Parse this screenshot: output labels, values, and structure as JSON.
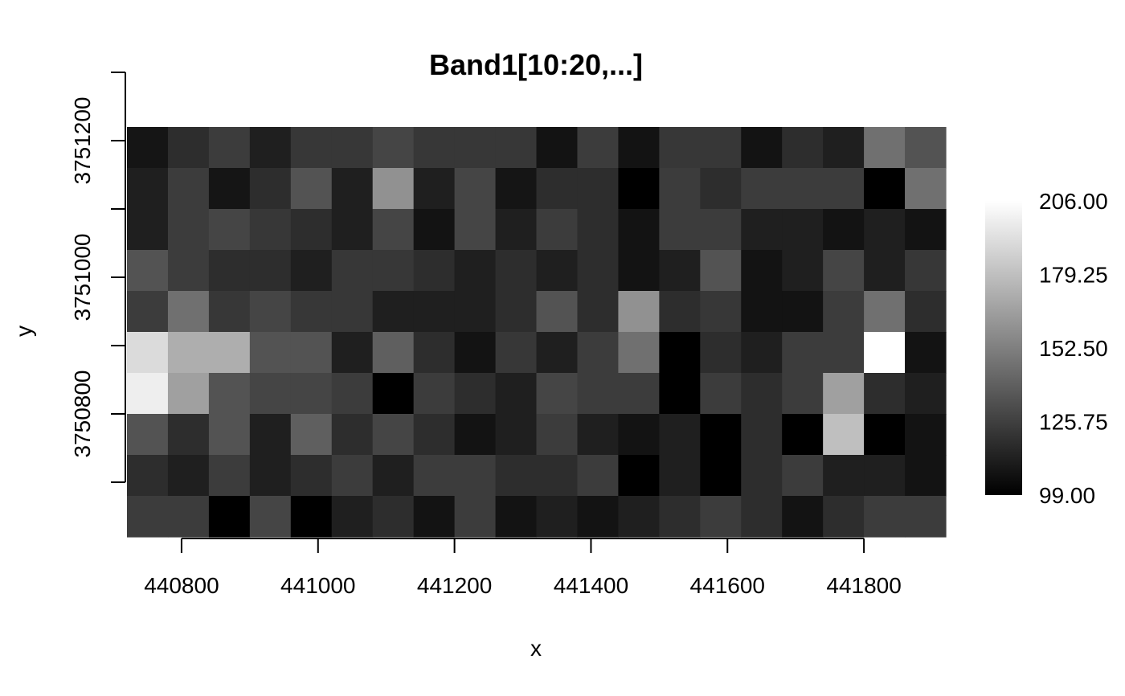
{
  "chart_data": {
    "type": "heatmap",
    "title": "Band1[10:20,...]",
    "xlabel": "x",
    "ylabel": "y",
    "x_ticks": [
      "440800",
      "441000",
      "441200",
      "441400",
      "441600",
      "441800"
    ],
    "x_tick_values": [
      440800,
      441000,
      441200,
      441400,
      441600,
      441800
    ],
    "y_ticks": [
      "3750800",
      "3751000",
      "3751200"
    ],
    "y_tick_values": [
      3750800,
      3751000,
      3751200
    ],
    "y_minor_tick_values": [
      3750700,
      3750900,
      3751100,
      3751300
    ],
    "xlim": [
      440720,
      441920
    ],
    "ylim": [
      3750620,
      3751220
    ],
    "cell_size": 60,
    "color_scale": {
      "low": "#000000",
      "high": "#ffffff",
      "min": 99,
      "max": 206
    },
    "legend": {
      "position": "right",
      "labels": [
        "206.00",
        "179.25",
        "152.50",
        "125.75",
        "99.00"
      ],
      "values": [
        206,
        179.25,
        152.5,
        125.75,
        99
      ]
    },
    "grid": false,
    "values": [
      [
        108,
        118,
        124,
        112,
        122,
        122,
        128,
        122,
        122,
        122,
        107,
        124,
        107,
        122,
        122,
        107,
        118,
        112,
        146,
        134
      ],
      [
        112,
        124,
        108,
        118,
        134,
        112,
        160,
        112,
        128,
        108,
        118,
        118,
        99,
        124,
        118,
        124,
        124,
        124,
        99,
        146
      ],
      [
        112,
        124,
        128,
        122,
        118,
        112,
        128,
        107,
        128,
        112,
        124,
        118,
        107,
        124,
        124,
        112,
        112,
        107,
        112,
        107
      ],
      [
        134,
        124,
        118,
        118,
        112,
        122,
        122,
        118,
        112,
        118,
        112,
        118,
        107,
        112,
        134,
        107,
        112,
        128,
        112,
        122
      ],
      [
        124,
        146,
        122,
        128,
        122,
        122,
        112,
        112,
        112,
        118,
        134,
        118,
        160,
        118,
        122,
        107,
        107,
        124,
        146,
        118
      ],
      [
        191,
        172,
        172,
        134,
        134,
        112,
        139,
        118,
        107,
        122,
        112,
        124,
        146,
        99,
        118,
        112,
        124,
        124,
        206,
        107
      ],
      [
        199,
        166,
        134,
        128,
        128,
        124,
        99,
        124,
        118,
        112,
        128,
        124,
        124,
        99,
        124,
        118,
        124,
        166,
        118,
        112
      ],
      [
        134,
        118,
        134,
        112,
        139,
        118,
        128,
        118,
        107,
        112,
        124,
        112,
        107,
        112,
        99,
        118,
        99,
        179,
        99,
        107
      ],
      [
        118,
        112,
        124,
        112,
        118,
        124,
        112,
        124,
        124,
        118,
        118,
        124,
        99,
        112,
        99,
        118,
        124,
        112,
        112,
        107
      ],
      [
        124,
        124,
        99,
        128,
        99,
        112,
        118,
        107,
        124,
        107,
        112,
        107,
        112,
        118,
        124,
        118,
        107,
        118,
        124,
        124
      ]
    ]
  }
}
